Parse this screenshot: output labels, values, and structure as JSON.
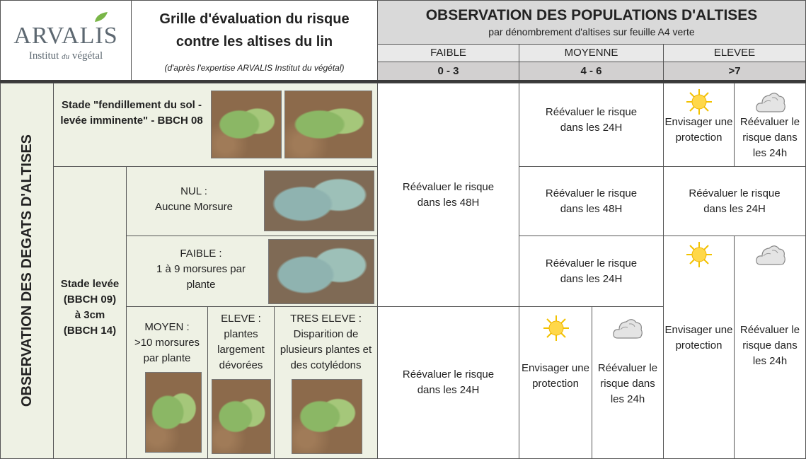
{
  "header": {
    "logo_name": "ARVALIS",
    "logo_tagline": [
      "Institut",
      "du",
      "végétal"
    ],
    "title": "Grille d'évaluation du risque contre les altises du lin",
    "source": "(d'après l'expertise ARVALIS Institut du végétal)"
  },
  "populations": {
    "title": "OBSERVATION DES POPULATIONS D'ALTISES",
    "subtitle": "par dénombrement d'altises sur feuille A4 verte",
    "levels": [
      {
        "label": "FAIBLE",
        "range": "0 - 3"
      },
      {
        "label": "MOYENNE",
        "range": "4 - 6"
      },
      {
        "label": "ELEVEE",
        "range": ">7"
      }
    ]
  },
  "damage": {
    "title": "OBSERVATION DES DEGATS D'ALTISES",
    "stage_emergence": "Stade \"fendillement du sol - levée imminente\" - BBCH 08",
    "stage_growth": "Stade levée (BBCH 09) à 3cm (BBCH 14)",
    "levels": [
      {
        "label": "NUL :",
        "description": "Aucune Morsure"
      },
      {
        "label": "FAIBLE :",
        "description": "1 à 9 morsures par plante"
      },
      {
        "label": "MOYEN :",
        "description": ">10 morsures par plante"
      },
      {
        "label": "ELEVE :",
        "description": "plantes largement dévorées"
      },
      {
        "label": "TRES ELEVE :",
        "description": "Disparition de plusieurs plantes et des cotylédons"
      }
    ]
  },
  "recommendations": {
    "faible": [
      "Réévaluer le risque dans les 48H",
      "Réévaluer le risque dans les 24H"
    ],
    "moyenne": [
      "Réévaluer le risque dans les 24H",
      "Réévaluer le risque dans les 48H",
      "Réévaluer le risque dans les 24H",
      {
        "sunny": "Envisager une protection",
        "cloudy": "Réévaluer le risque dans les 24h"
      }
    ],
    "elevee": [
      {
        "sunny": "Envisager une protection",
        "cloudy": "Réévaluer le risque dans les 24h"
      },
      "Réévaluer le risque dans les 24H",
      {
        "sunny": "Envisager une protection",
        "cloudy": "Réévaluer le risque dans les 24h"
      }
    ]
  }
}
